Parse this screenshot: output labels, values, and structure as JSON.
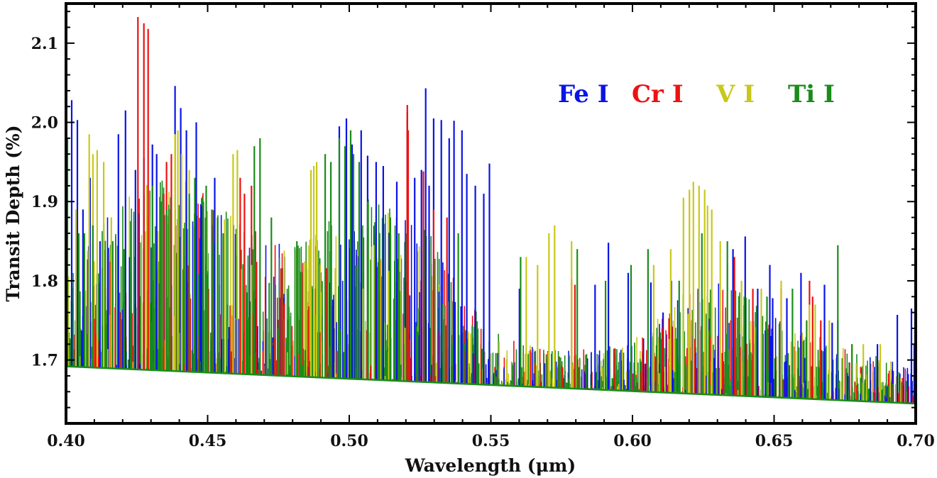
{
  "chart_data": {
    "type": "line",
    "title": "",
    "xlabel": "Wavelength (μm)",
    "ylabel": "Transit Depth (%)",
    "xlim": [
      0.4,
      0.7
    ],
    "ylim": [
      1.62,
      2.15
    ],
    "x_ticks": [
      0.4,
      0.45,
      0.5,
      0.55,
      0.6,
      0.65,
      0.7
    ],
    "x_tick_labels": [
      "0.40",
      "0.45",
      "0.50",
      "0.55",
      "0.60",
      "0.65",
      "0.70"
    ],
    "y_ticks": [
      1.7,
      1.8,
      1.9,
      2.0,
      2.1
    ],
    "y_tick_labels": [
      "1.7",
      "1.8",
      "1.9",
      "2.0",
      "2.1"
    ],
    "grid": false,
    "legend_position": "top-right",
    "baseline": {
      "x": [
        0.4,
        0.7
      ],
      "y": [
        1.692,
        1.645
      ]
    },
    "series": [
      {
        "name": "Fe I",
        "color": "#0a14e6",
        "lines": [
          [
            0.402,
            2.028
          ],
          [
            0.404,
            2.003
          ],
          [
            0.406,
            1.89
          ],
          [
            0.4085,
            1.93
          ],
          [
            0.412,
            1.85
          ],
          [
            0.4185,
            1.985
          ],
          [
            0.421,
            2.015
          ],
          [
            0.4245,
            1.94
          ],
          [
            0.4275,
            1.955
          ],
          [
            0.4305,
            1.972
          ],
          [
            0.432,
            1.96
          ],
          [
            0.4385,
            2.046
          ],
          [
            0.4405,
            2.018
          ],
          [
            0.4425,
            1.99
          ],
          [
            0.446,
            2.0
          ],
          [
            0.4525,
            1.93
          ],
          [
            0.4965,
            1.995
          ],
          [
            0.499,
            2.005
          ],
          [
            0.501,
            1.972
          ],
          [
            0.5042,
            1.99
          ],
          [
            0.5065,
            1.958
          ],
          [
            0.5095,
            1.95
          ],
          [
            0.512,
            1.945
          ],
          [
            0.5168,
            1.925
          ],
          [
            0.5205,
            2.002
          ],
          [
            0.5231,
            1.93
          ],
          [
            0.5255,
            1.94
          ],
          [
            0.527,
            2.043
          ],
          [
            0.5282,
            1.92
          ],
          [
            0.5298,
            2.005
          ],
          [
            0.5325,
            2.003
          ],
          [
            0.5353,
            1.98
          ],
          [
            0.537,
            2.002
          ],
          [
            0.5398,
            1.99
          ],
          [
            0.5415,
            1.935
          ],
          [
            0.5445,
            1.92
          ],
          [
            0.5475,
            1.91
          ],
          [
            0.5495,
            1.948
          ],
          [
            0.5601,
            1.79
          ],
          [
            0.5868,
            1.795
          ],
          [
            0.5915,
            1.848
          ],
          [
            0.5985,
            1.81
          ],
          [
            0.6065,
            1.798
          ],
          [
            0.6108,
            1.76
          ],
          [
            0.6137,
            1.8
          ],
          [
            0.6232,
            1.79
          ],
          [
            0.6355,
            1.84
          ],
          [
            0.6398,
            1.856
          ],
          [
            0.6442,
            1.79
          ],
          [
            0.6485,
            1.82
          ],
          [
            0.6495,
            1.778
          ],
          [
            0.6545,
            1.778
          ],
          [
            0.6595,
            1.81
          ],
          [
            0.6678,
            1.795
          ],
          [
            0.6705,
            1.747
          ],
          [
            0.6725,
            1.75
          ],
          [
            0.6865,
            1.72
          ],
          [
            0.6935,
            1.757
          ],
          [
            0.6985,
            1.765
          ],
          [
            0.6995,
            1.72
          ]
        ]
      },
      {
        "name": "Cr I",
        "color": "#ee1111",
        "lines": [
          [
            0.4254,
            2.133
          ],
          [
            0.4275,
            2.125
          ],
          [
            0.429,
            2.118
          ],
          [
            0.4345,
            1.91
          ],
          [
            0.4355,
            1.95
          ],
          [
            0.4372,
            1.96
          ],
          [
            0.4385,
            1.89
          ],
          [
            0.4615,
            1.93
          ],
          [
            0.463,
            1.91
          ],
          [
            0.4655,
            1.92
          ],
          [
            0.5065,
            1.85
          ],
          [
            0.5205,
            2.022
          ],
          [
            0.5205,
            2.013
          ],
          [
            0.5208,
            1.99
          ],
          [
            0.5262,
            1.938
          ],
          [
            0.5298,
            1.89
          ],
          [
            0.5345,
            1.88
          ],
          [
            0.5785,
            1.802
          ],
          [
            0.5797,
            1.795
          ],
          [
            0.6105,
            1.74
          ],
          [
            0.636,
            1.83
          ],
          [
            0.6425,
            1.79
          ],
          [
            0.6525,
            1.79
          ],
          [
            0.6625,
            1.8
          ],
          [
            0.6636,
            1.78
          ],
          [
            0.6665,
            1.75
          ]
        ]
      },
      {
        "name": "V I",
        "color": "#c8c81a",
        "lines": [
          [
            0.4005,
            1.88
          ],
          [
            0.4035,
            1.89
          ],
          [
            0.4082,
            1.985
          ],
          [
            0.4095,
            1.96
          ],
          [
            0.411,
            1.965
          ],
          [
            0.4133,
            1.95
          ],
          [
            0.416,
            1.88
          ],
          [
            0.4385,
            1.985
          ],
          [
            0.4395,
            1.99
          ],
          [
            0.4408,
            1.96
          ],
          [
            0.4435,
            1.94
          ],
          [
            0.459,
            1.96
          ],
          [
            0.4605,
            1.965
          ],
          [
            0.4865,
            1.94
          ],
          [
            0.4875,
            1.945
          ],
          [
            0.4885,
            1.95
          ],
          [
            0.4655,
            1.82
          ],
          [
            0.4812,
            1.84
          ],
          [
            0.5625,
            1.83
          ],
          [
            0.5665,
            1.82
          ],
          [
            0.5705,
            1.86
          ],
          [
            0.5725,
            1.87
          ],
          [
            0.5785,
            1.85
          ],
          [
            0.6075,
            1.82
          ],
          [
            0.6135,
            1.84
          ],
          [
            0.618,
            1.905
          ],
          [
            0.6201,
            1.915
          ],
          [
            0.6215,
            1.925
          ],
          [
            0.6235,
            1.92
          ],
          [
            0.6255,
            1.915
          ],
          [
            0.6265,
            1.895
          ],
          [
            0.628,
            1.89
          ],
          [
            0.631,
            1.85
          ],
          [
            0.6335,
            1.82
          ],
          [
            0.6385,
            1.8
          ],
          [
            0.6455,
            1.79
          ],
          [
            0.6525,
            1.8
          ],
          [
            0.6625,
            1.77
          ],
          [
            0.6645,
            1.77
          ],
          [
            0.6695,
            1.75
          ],
          [
            0.6775,
            1.72
          ],
          [
            0.6815,
            1.72
          ],
          [
            0.6875,
            1.72
          ]
        ]
      },
      {
        "name": "Ti I",
        "color": "#1a8c1a",
        "lines": [
          [
            0.4005,
            1.98
          ],
          [
            0.4045,
            1.86
          ],
          [
            0.4065,
            1.86
          ],
          [
            0.4095,
            1.87
          ],
          [
            0.4165,
            1.85
          ],
          [
            0.4205,
            1.84
          ],
          [
            0.4305,
            1.92
          ],
          [
            0.4335,
            1.9
          ],
          [
            0.4355,
            1.89
          ],
          [
            0.4435,
            1.91
          ],
          [
            0.4455,
            1.93
          ],
          [
            0.4485,
            1.9
          ],
          [
            0.4495,
            1.92
          ],
          [
            0.4515,
            1.89
          ],
          [
            0.4535,
            1.88
          ],
          [
            0.4555,
            1.86
          ],
          [
            0.4665,
            1.97
          ],
          [
            0.4685,
            1.98
          ],
          [
            0.4725,
            1.88
          ],
          [
            0.4815,
            1.85
          ],
          [
            0.4915,
            1.96
          ],
          [
            0.4935,
            1.95
          ],
          [
            0.4965,
            1.98
          ],
          [
            0.4985,
            1.97
          ],
          [
            0.5005,
            1.99
          ],
          [
            0.5015,
            1.96
          ],
          [
            0.5035,
            1.95
          ],
          [
            0.5065,
            1.9
          ],
          [
            0.5145,
            1.88
          ],
          [
            0.5175,
            1.86
          ],
          [
            0.5385,
            1.86
          ],
          [
            0.5605,
            1.83
          ],
          [
            0.5805,
            1.84
          ],
          [
            0.5905,
            1.8
          ],
          [
            0.5995,
            1.82
          ],
          [
            0.6055,
            1.84
          ],
          [
            0.6165,
            1.8
          ],
          [
            0.6245,
            1.86
          ],
          [
            0.6335,
            1.85
          ],
          [
            0.6395,
            1.78
          ],
          [
            0.6475,
            1.78
          ],
          [
            0.6565,
            1.79
          ],
          [
            0.6725,
            1.845
          ],
          [
            0.6615,
            1.75
          ],
          [
            0.6775,
            1.72
          ]
        ]
      }
    ],
    "legend": [
      {
        "label": "Fe I",
        "color": "#0a14e6"
      },
      {
        "label": "Cr I",
        "color": "#ee1111"
      },
      {
        "label": "V I",
        "color": "#c8c81a"
      },
      {
        "label": "Ti I",
        "color": "#1a8c1a"
      }
    ]
  }
}
